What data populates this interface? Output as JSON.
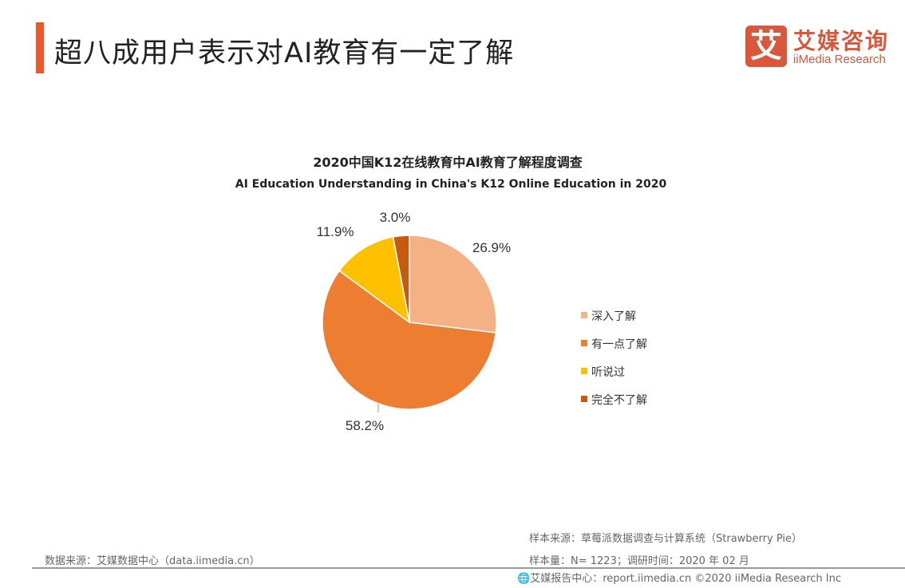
{
  "header": {
    "title": "超八成用户表示对AI教育有一定了解",
    "accent_color": "#F0582A"
  },
  "logo": {
    "mark": "艾",
    "cn": "艾媒咨询",
    "en": "iiMedia Research",
    "color": "#D9573A"
  },
  "chart_data": {
    "type": "pie",
    "title": "2020中国K12在线教育中AI教育了解程度调查",
    "subtitle": "AI Education Understanding in China's K12 Online Education in 2020",
    "legend_position": "right",
    "categories": [
      "深入了解",
      "有一点了解",
      "听说过",
      "完全不了解"
    ],
    "values": [
      26.9,
      58.2,
      11.9,
      3.0
    ],
    "labels": [
      "26.9%",
      "58.2%",
      "11.9%",
      "3.0%"
    ],
    "colors": [
      "#F4B183",
      "#ED7D31",
      "#FFC000",
      "#C55A11"
    ]
  },
  "footer": {
    "data_source": "数据来源：艾媒数据中心（data.iimedia.cn）",
    "sample_source": "样本来源：草莓派数据调查与计算系统（Strawberry   Pie）",
    "sample_size": "样本量：N= 1223；调研时间：2020 年 02 月",
    "report_center": "艾媒报告中心：report.iimedia.cn  ©2020  iiMedia Research Inc"
  }
}
